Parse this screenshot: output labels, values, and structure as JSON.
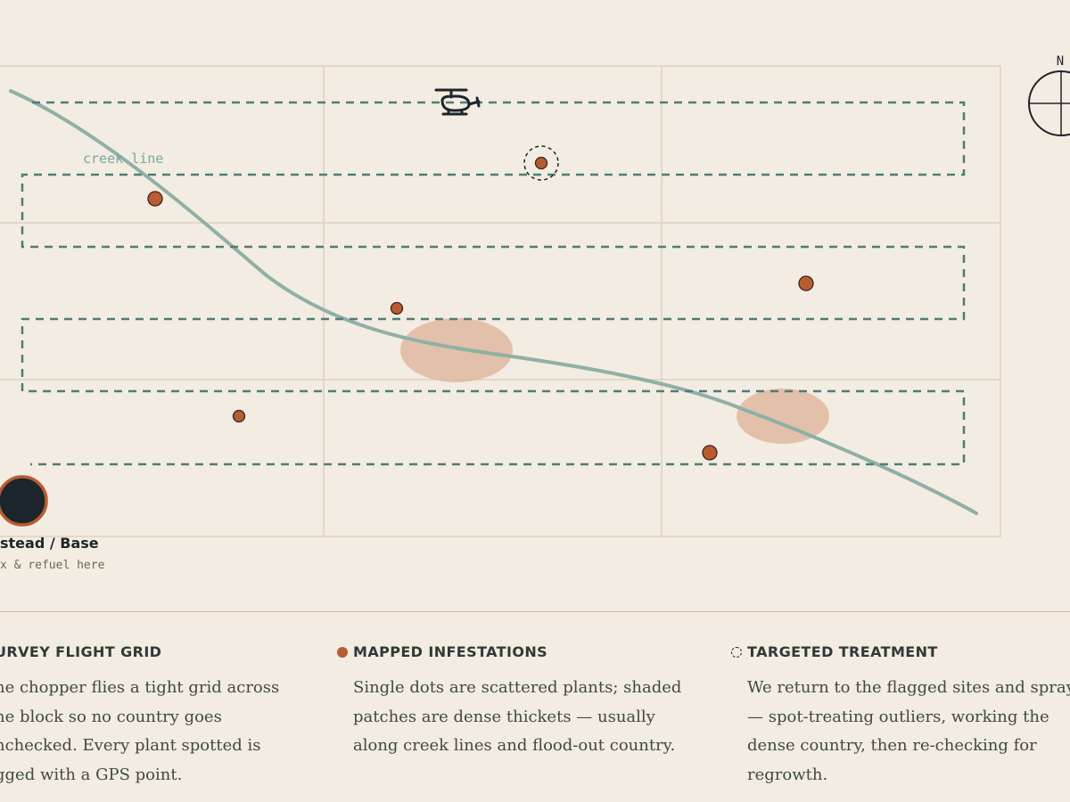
{
  "map": {
    "creek_label": "creek line",
    "north_label": "N",
    "base": {
      "title": "stead / Base",
      "subtitle": "x & refuel here"
    },
    "colors": {
      "background": "#f3ece2",
      "grid_line": "#ddd2c2",
      "flight_path": "#4f7d74",
      "creek": "#8fb0a6",
      "infestation_dot": "#b85c32",
      "dense_patch": "#dfb8a0",
      "base_fill": "#1d252c",
      "base_ring": "#b85c32",
      "ink": "#1d252c"
    },
    "icons": [
      "helicopter-icon",
      "compass-icon"
    ]
  },
  "legend": [
    {
      "heading": "URVEY FLIGHT GRID",
      "body": "he chopper flies a tight grid across he block so no country goes nchecked. Every plant spotted is gged with a GPS point."
    },
    {
      "heading": "MAPPED INFESTATIONS",
      "body": "Single dots are scattered plants; shaded patches are dense thickets — usually along creek lines and flood-out country."
    },
    {
      "heading": "TARGETED TREATMENT",
      "body": "We return to the flagged sites and spray — spot-treating outliers, working the dense country, then re-checking for regrowth."
    }
  ]
}
